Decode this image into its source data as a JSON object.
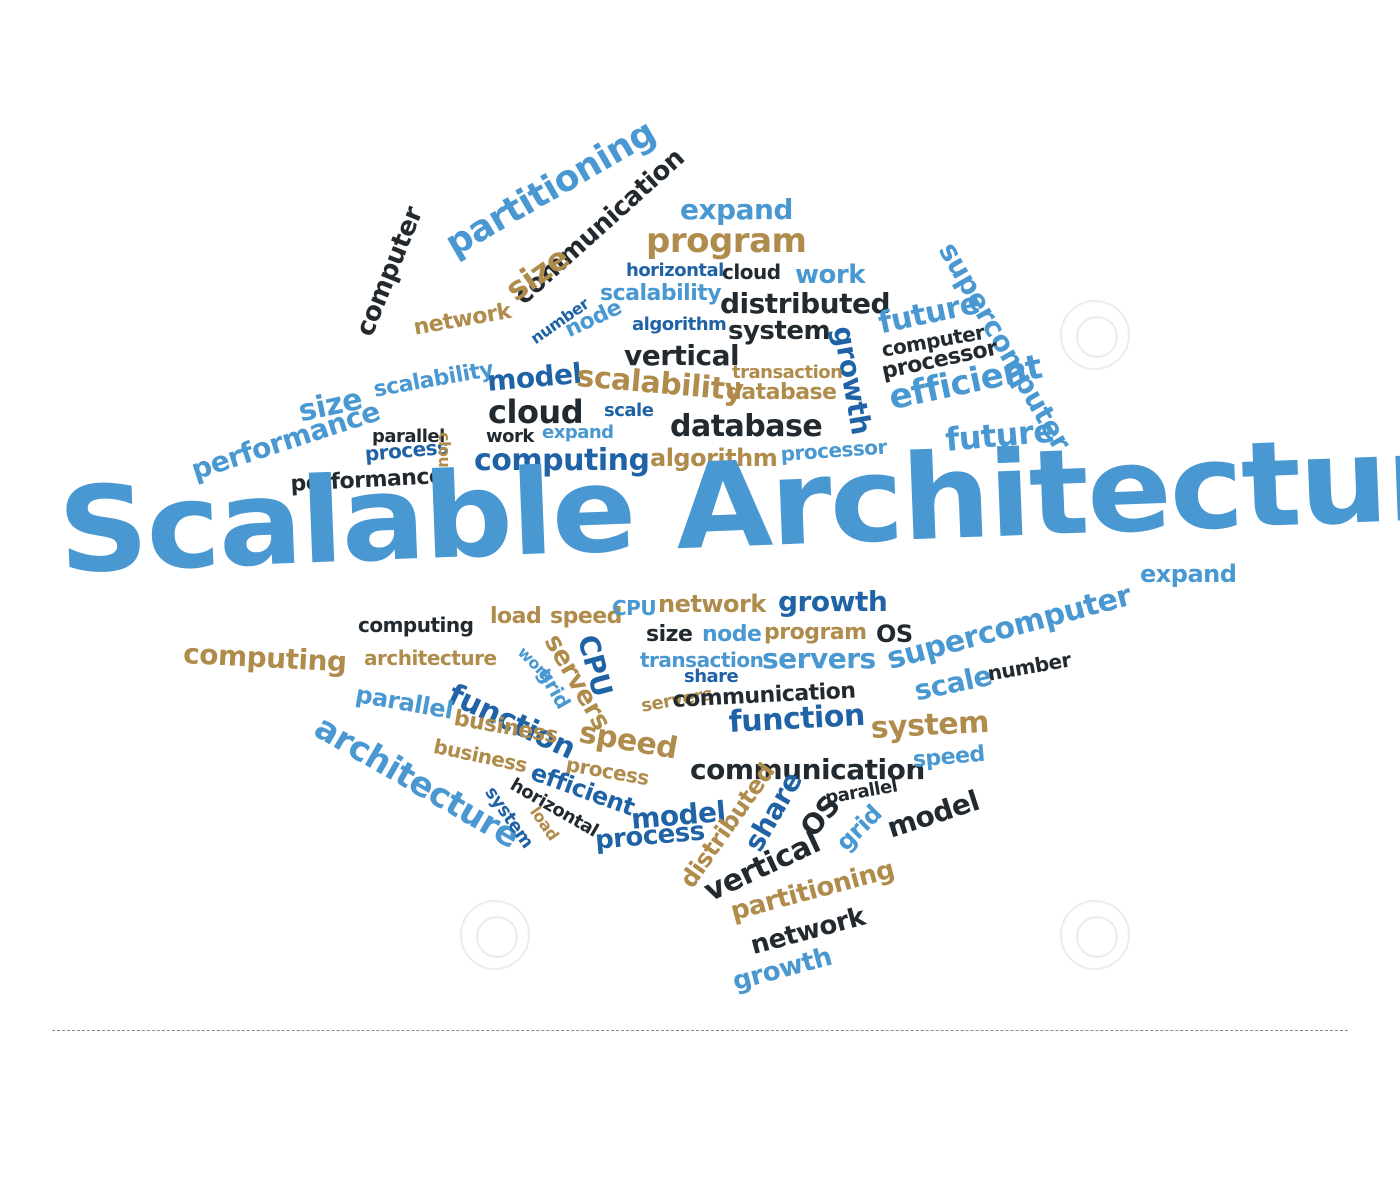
{
  "title": "Scalable Architecture",
  "colors": {
    "blue": "#4a98d1",
    "dark_blue": "#1f63a6",
    "gold": "#b08c4c",
    "dark": "#222a30"
  },
  "words": [
    "partitioning",
    "expand",
    "communication",
    "program",
    "computer",
    "horizontal",
    "cloud",
    "work",
    "supercomputer",
    "size",
    "scalability",
    "distributed",
    "network",
    "number",
    "node",
    "algorithm",
    "system",
    "future",
    "growth",
    "vertical",
    "computer",
    "transaction",
    "processor",
    "size",
    "scalability",
    "model",
    "scalability",
    "database",
    "cloud",
    "efficient",
    "scale",
    "performance",
    "parallel",
    "work",
    "expand",
    "database",
    "future",
    "process",
    "cloud",
    "computing",
    "algorithm",
    "processor",
    "performance",
    "computing",
    "load",
    "speed",
    "CPU",
    "network",
    "growth",
    "expand",
    "size",
    "node",
    "program",
    "OS",
    "supercomputer",
    "CPU",
    "servers",
    "computing",
    "architecture",
    "work",
    "transaction",
    "servers",
    "grid",
    "share",
    "scale",
    "number",
    "function",
    "parallel",
    "servers",
    "communication",
    "architecture",
    "business",
    "function",
    "speed",
    "system",
    "business",
    "process",
    "communication",
    "speed",
    "efficient",
    "horizontal",
    "model",
    "parallel",
    "system",
    "load",
    "process",
    "share",
    "OS",
    "grid",
    "model",
    "distributed",
    "vertical",
    "partitioning",
    "network",
    "growth"
  ]
}
